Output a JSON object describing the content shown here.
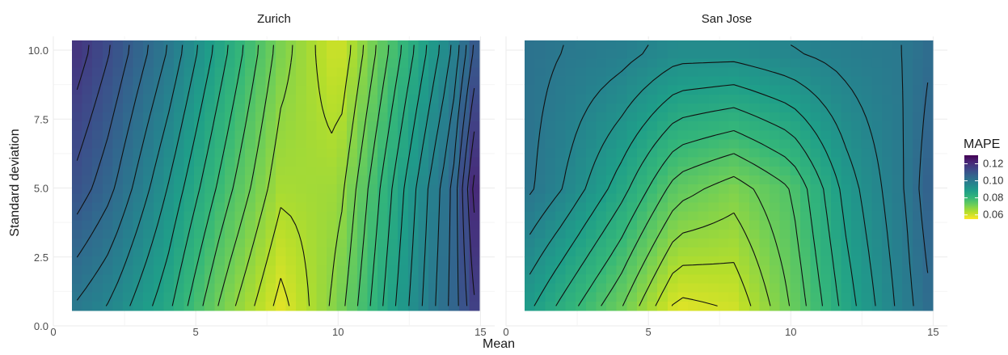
{
  "chart_data": {
    "type": "heatmap",
    "subtype": "faceted heatmap with contour lines",
    "xlabel": "Mean",
    "ylabel": "Standard deviation",
    "x_ticks": [
      0,
      5,
      10,
      15
    ],
    "y_ticks": [
      "0.0",
      "2.5",
      "5.0",
      "7.5",
      "10.0"
    ],
    "xlim": [
      0,
      15.5
    ],
    "ylim": [
      0,
      10.5
    ],
    "grid": true,
    "legend": {
      "title": "MAPE",
      "position": "right",
      "ticks": [
        "0.12",
        "0.10",
        "0.08",
        "0.06"
      ],
      "range": [
        0.055,
        0.13
      ],
      "colors": [
        "#fde725",
        "#b5de2b",
        "#6ece58",
        "#35b779",
        "#1f9e89",
        "#26828e",
        "#31688e",
        "#3e4989",
        "#482878",
        "#440154"
      ]
    },
    "contour_color": "#111111",
    "panels": [
      {
        "title": "Zurich",
        "mape": {
          "x": [
            0.5,
            2,
            4,
            6,
            8,
            10,
            12,
            14,
            15
          ],
          "y": [
            0.5,
            5,
            10
          ],
          "values": [
            [
              0.1,
              0.095,
              0.085,
              0.07,
              0.058,
              0.07,
              0.088,
              0.105,
              0.118
            ],
            [
              0.112,
              0.105,
              0.092,
              0.078,
              0.065,
              0.066,
              0.085,
              0.104,
              0.126
            ],
            [
              0.12,
              0.112,
              0.1,
              0.085,
              0.07,
              0.06,
              0.078,
              0.096,
              0.112
            ]
          ]
        }
      },
      {
        "title": "San Jose",
        "mape": {
          "x": [
            0.5,
            2,
            4,
            6,
            8,
            10,
            12,
            14,
            15
          ],
          "y": [
            0.5,
            5,
            10
          ],
          "values": [
            [
              0.09,
              0.082,
              0.072,
              0.058,
              0.06,
              0.072,
              0.086,
              0.098,
              0.104
            ],
            [
              0.102,
              0.096,
              0.086,
              0.074,
              0.07,
              0.076,
              0.09,
              0.1,
              0.108
            ],
            [
              0.102,
              0.1,
              0.098,
              0.094,
              0.094,
              0.096,
              0.098,
              0.1,
              0.104
            ]
          ]
        }
      }
    ]
  }
}
